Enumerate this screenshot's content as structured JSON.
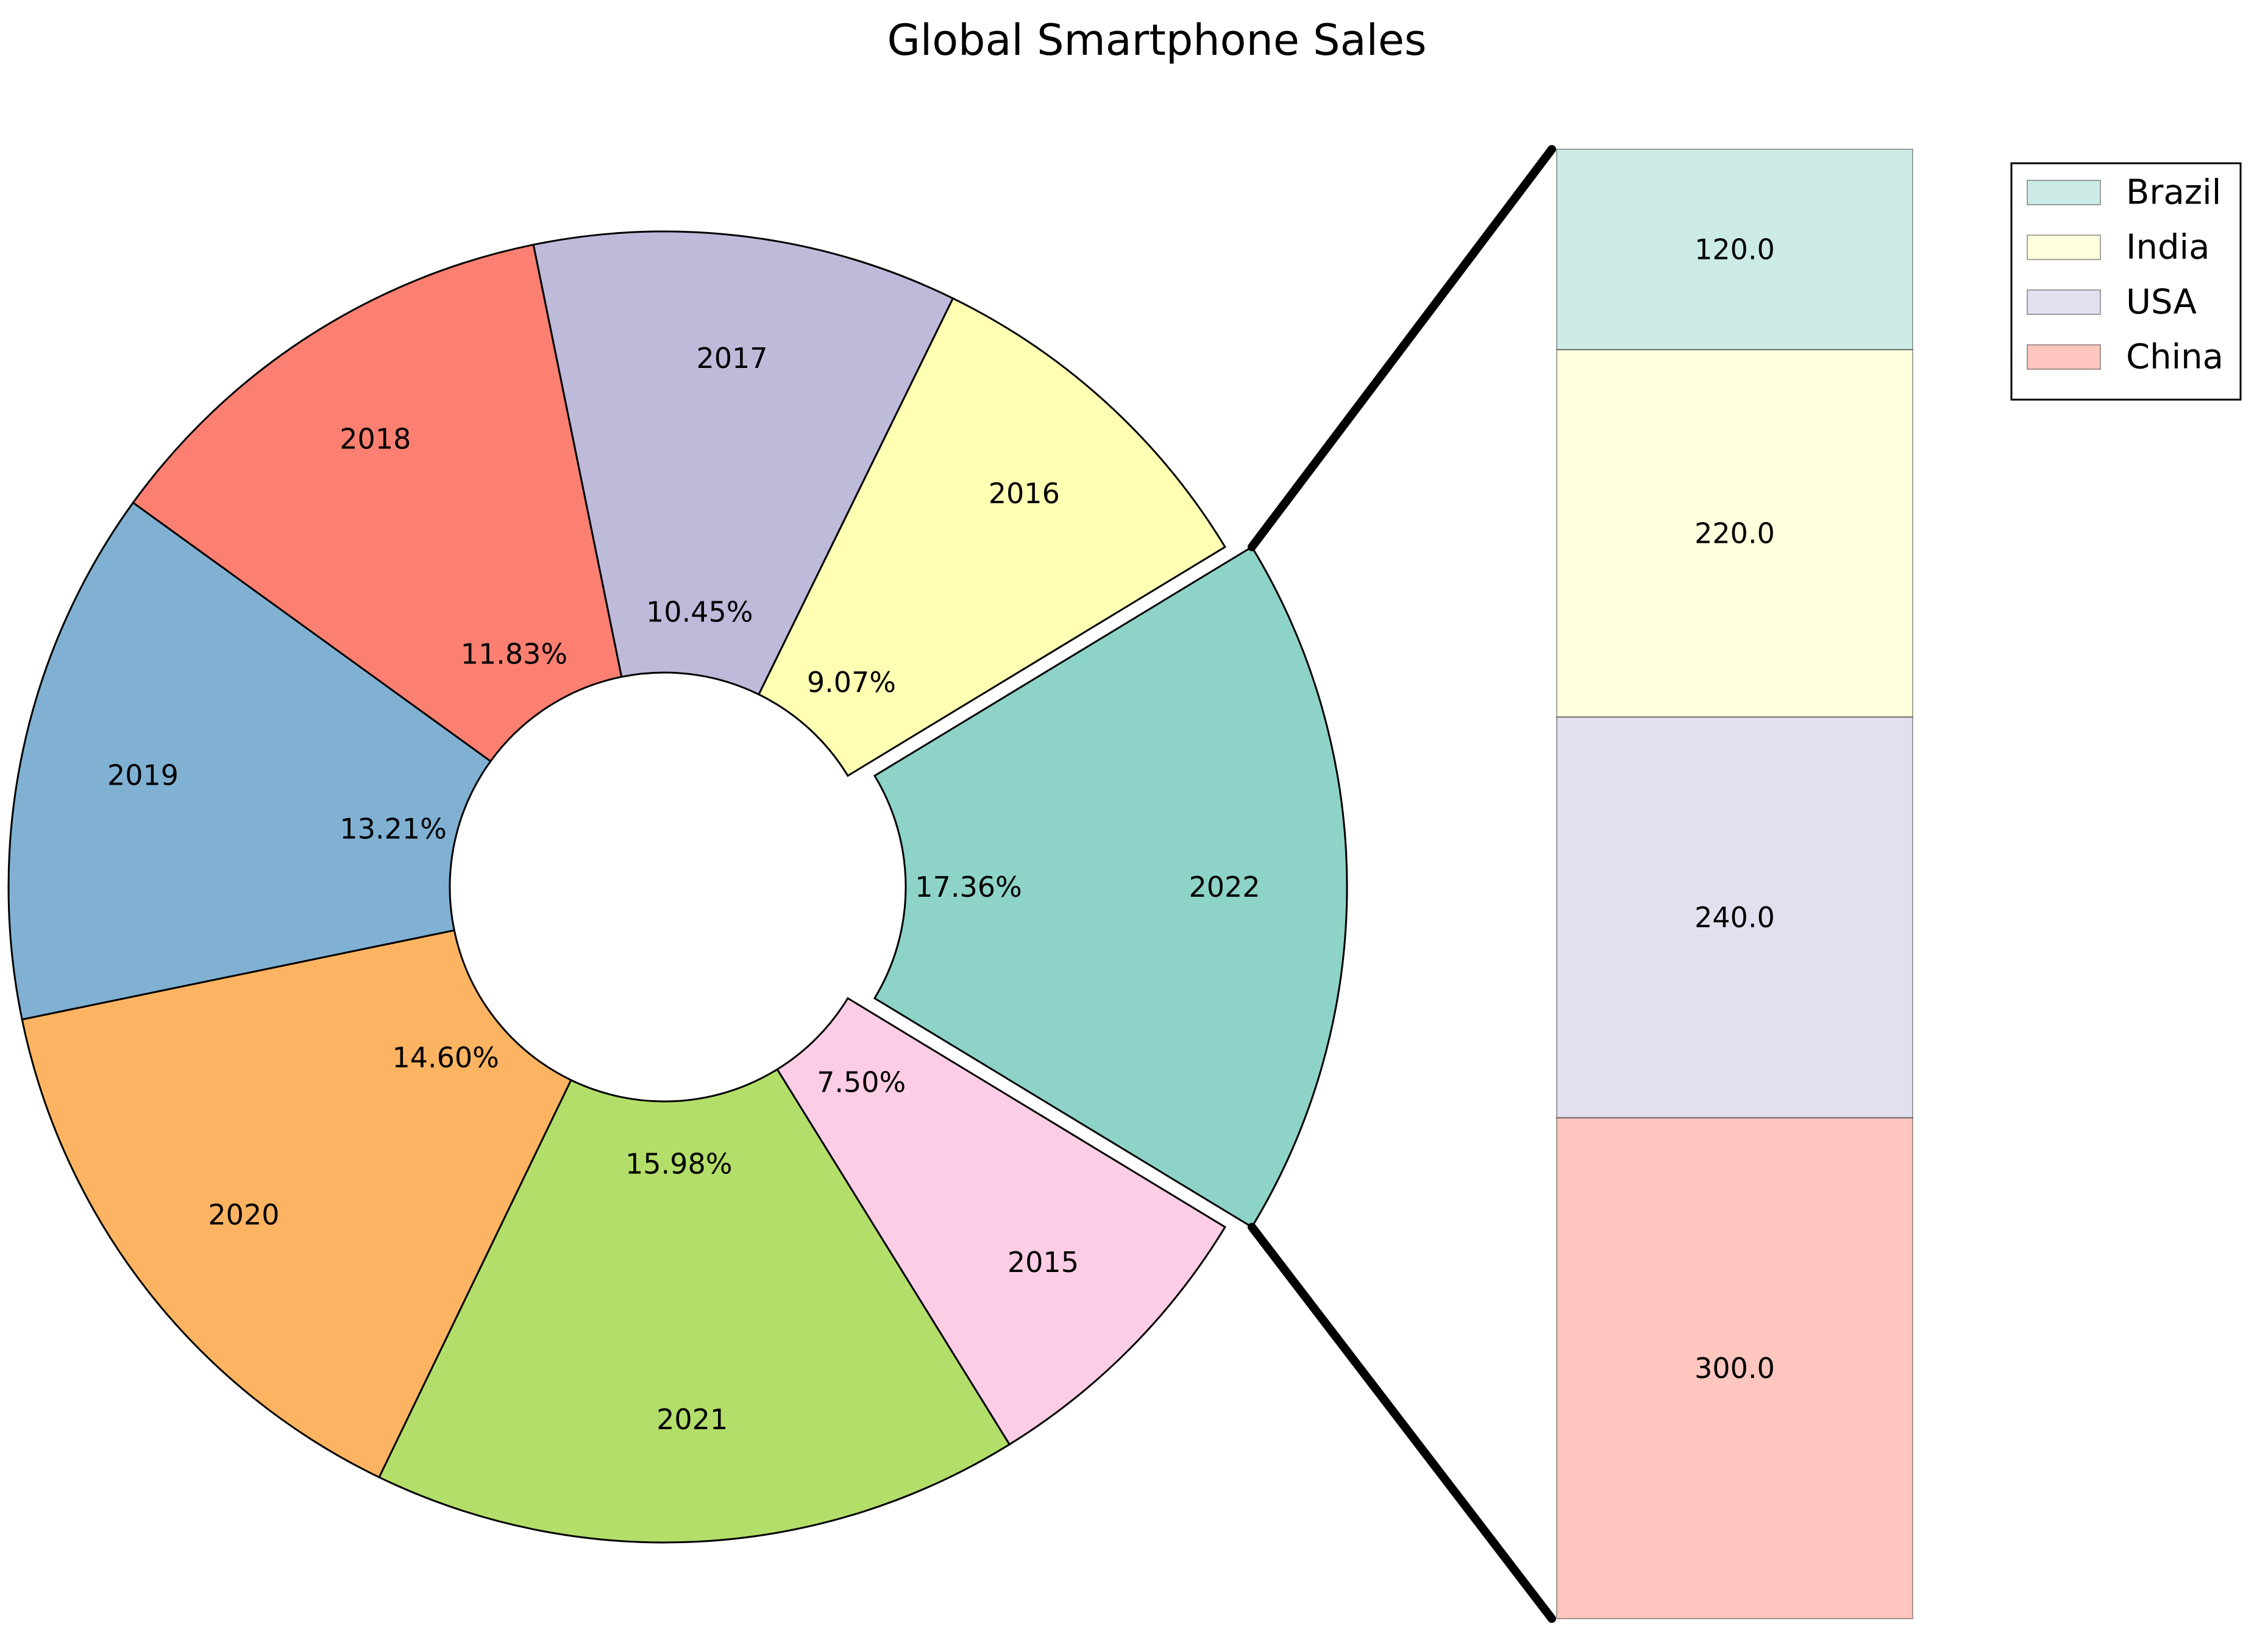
{
  "chart_data": [
    {
      "type": "pie",
      "title": "Global Smartphone Sales",
      "donut": true,
      "exploded_slice": "2022",
      "slices": [
        {
          "label": "2022",
          "value": 17.36,
          "pct_label": "17.36%",
          "color": "#8DD3C7"
        },
        {
          "label": "2016",
          "value": 9.07,
          "pct_label": "9.07%",
          "color": "#FFFFB3"
        },
        {
          "label": "2017",
          "value": 10.45,
          "pct_label": "10.45%",
          "color": "#BEBADA"
        },
        {
          "label": "2018",
          "value": 11.83,
          "pct_label": "11.83%",
          "color": "#FB8072"
        },
        {
          "label": "2019",
          "value": 13.21,
          "pct_label": "13.21%",
          "color": "#80B1D3"
        },
        {
          "label": "2020",
          "value": 14.6,
          "pct_label": "14.60%",
          "color": "#FDB462"
        },
        {
          "label": "2021",
          "value": 15.98,
          "pct_label": "15.98%",
          "color": "#B3DE69"
        },
        {
          "label": "2015",
          "value": 7.5,
          "pct_label": "7.50%",
          "color": "#FCCDE5"
        }
      ]
    },
    {
      "type": "bar",
      "stacked": true,
      "breakdown_of": "2022",
      "segments": [
        {
          "name": "China",
          "value": 300.0,
          "value_label": "300.0",
          "color": "#FB8072"
        },
        {
          "name": "USA",
          "value": 240.0,
          "value_label": "240.0",
          "color": "#BEBADA"
        },
        {
          "name": "India",
          "value": 220.0,
          "value_label": "220.0",
          "color": "#FFFFB3"
        },
        {
          "name": "Brazil",
          "value": 120.0,
          "value_label": "120.0",
          "color": "#8DD3C7"
        }
      ],
      "legend_order": [
        "Brazil",
        "India",
        "USA",
        "China"
      ],
      "legend_position": "top-right"
    }
  ]
}
